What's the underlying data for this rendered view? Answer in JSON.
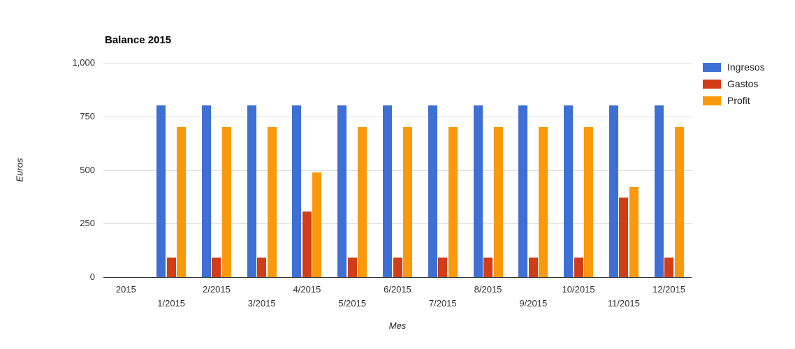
{
  "chart_data": {
    "type": "bar",
    "title": "Balance 2015",
    "xlabel": "Mes",
    "ylabel": "Euros",
    "categories": [
      "2015",
      "1/2015",
      "2/2015",
      "3/2015",
      "4/2015",
      "5/2015",
      "6/2015",
      "7/2015",
      "8/2015",
      "9/2015",
      "10/2015",
      "11/2015",
      "12/2015"
    ],
    "series": [
      {
        "name": "Ingresos",
        "color": "#3D6FD4",
        "values": [
          null,
          800,
          800,
          800,
          800,
          800,
          800,
          800,
          800,
          800,
          800,
          800,
          800
        ]
      },
      {
        "name": "Gastos",
        "color": "#D23C17",
        "values": [
          null,
          90,
          90,
          90,
          305,
          90,
          90,
          90,
          90,
          90,
          90,
          370,
          90
        ]
      },
      {
        "name": "Profit",
        "color": "#F9990B",
        "values": [
          null,
          700,
          700,
          700,
          490,
          700,
          700,
          700,
          700,
          700,
          700,
          420,
          700
        ]
      }
    ],
    "ylim": [
      0,
      1000
    ],
    "yticks": [
      {
        "value": 0,
        "label": "0"
      },
      {
        "value": 250,
        "label": "250"
      },
      {
        "value": 500,
        "label": "500"
      },
      {
        "value": 750,
        "label": "750"
      },
      {
        "value": 1000,
        "label": "1,000"
      }
    ],
    "grid": true,
    "legend_position": "right"
  },
  "colors": {
    "gridline": "#DDDDDD",
    "baseline": "#333333",
    "tick_text": "#333333",
    "title_text": "#000000",
    "background": "#FFFFFF"
  }
}
